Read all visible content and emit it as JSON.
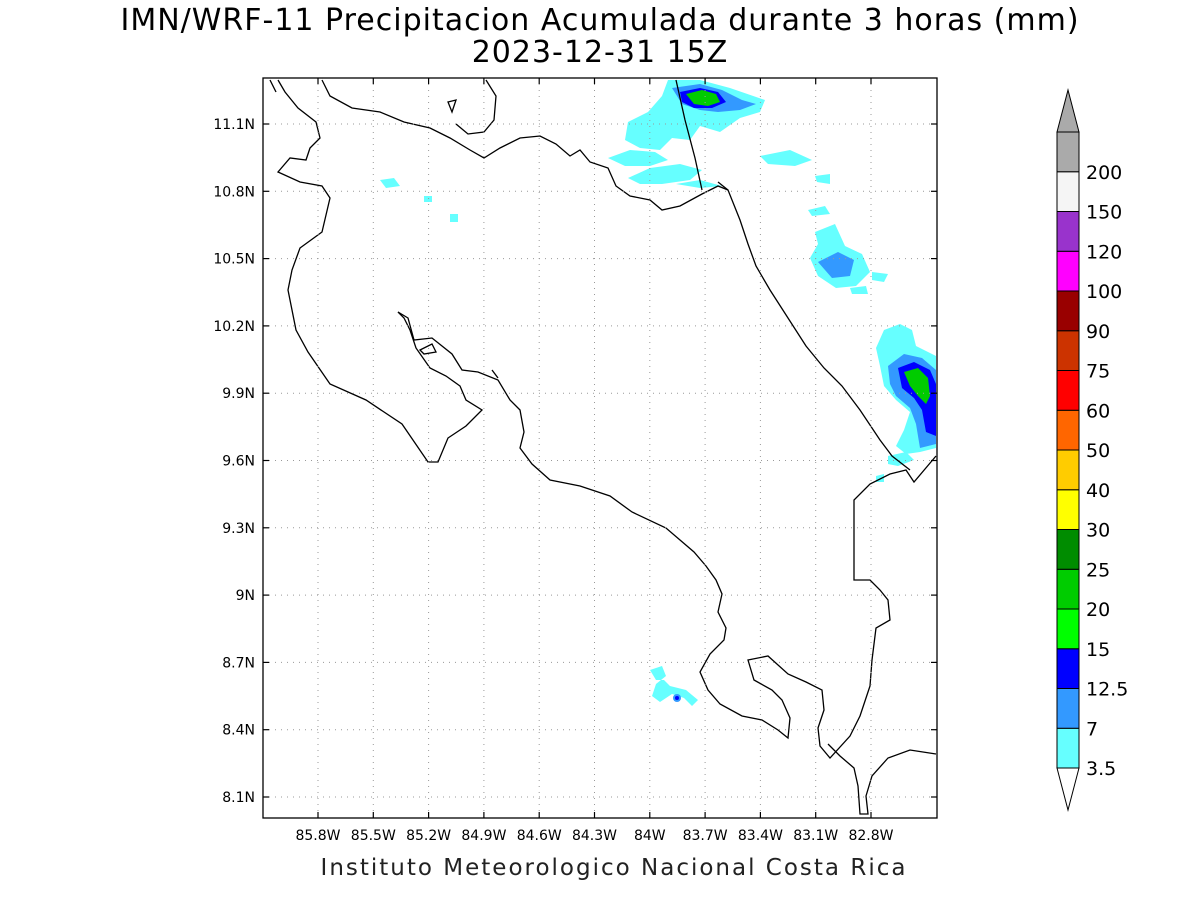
{
  "title_line1": "IMN/WRF-11 Precipitacion Acumulada durante 3 horas (mm)",
  "title_line2": "2023-12-31 15Z",
  "footer": "Instituto Meteorologico Nacional Costa Rica",
  "map": {
    "lon_ticks": [
      "85.8W",
      "85.5W",
      "85.2W",
      "84.9W",
      "84.6W",
      "84.3W",
      "84W",
      "83.7W",
      "83.4W",
      "83.1W",
      "82.8W"
    ],
    "lat_ticks": [
      "11.1N",
      "10.8N",
      "10.5N",
      "10.2N",
      "9.9N",
      "9.6N",
      "9.3N",
      "9N",
      "8.7N",
      "8.4N",
      "8.1N"
    ],
    "grid": true,
    "coastline_color": "#000000"
  },
  "colorbar": {
    "labels": [
      "3.5",
      "7",
      "12.5",
      "15",
      "20",
      "25",
      "30",
      "40",
      "50",
      "60",
      "75",
      "90",
      "100",
      "120",
      "150",
      "200"
    ],
    "colors": [
      "#66ffff",
      "#3399ff",
      "#0000ff",
      "#00ff00",
      "#00cc00",
      "#008c00",
      "#ffff00",
      "#ffcc00",
      "#ff6600",
      "#ff0000",
      "#cc3300",
      "#990000",
      "#ff00ff",
      "#9933cc",
      "#f5f5f5",
      "#aaaaaa"
    ],
    "upper_arrow_color": "#aaaaaa",
    "lower_arrow_color": "#ffffff"
  }
}
